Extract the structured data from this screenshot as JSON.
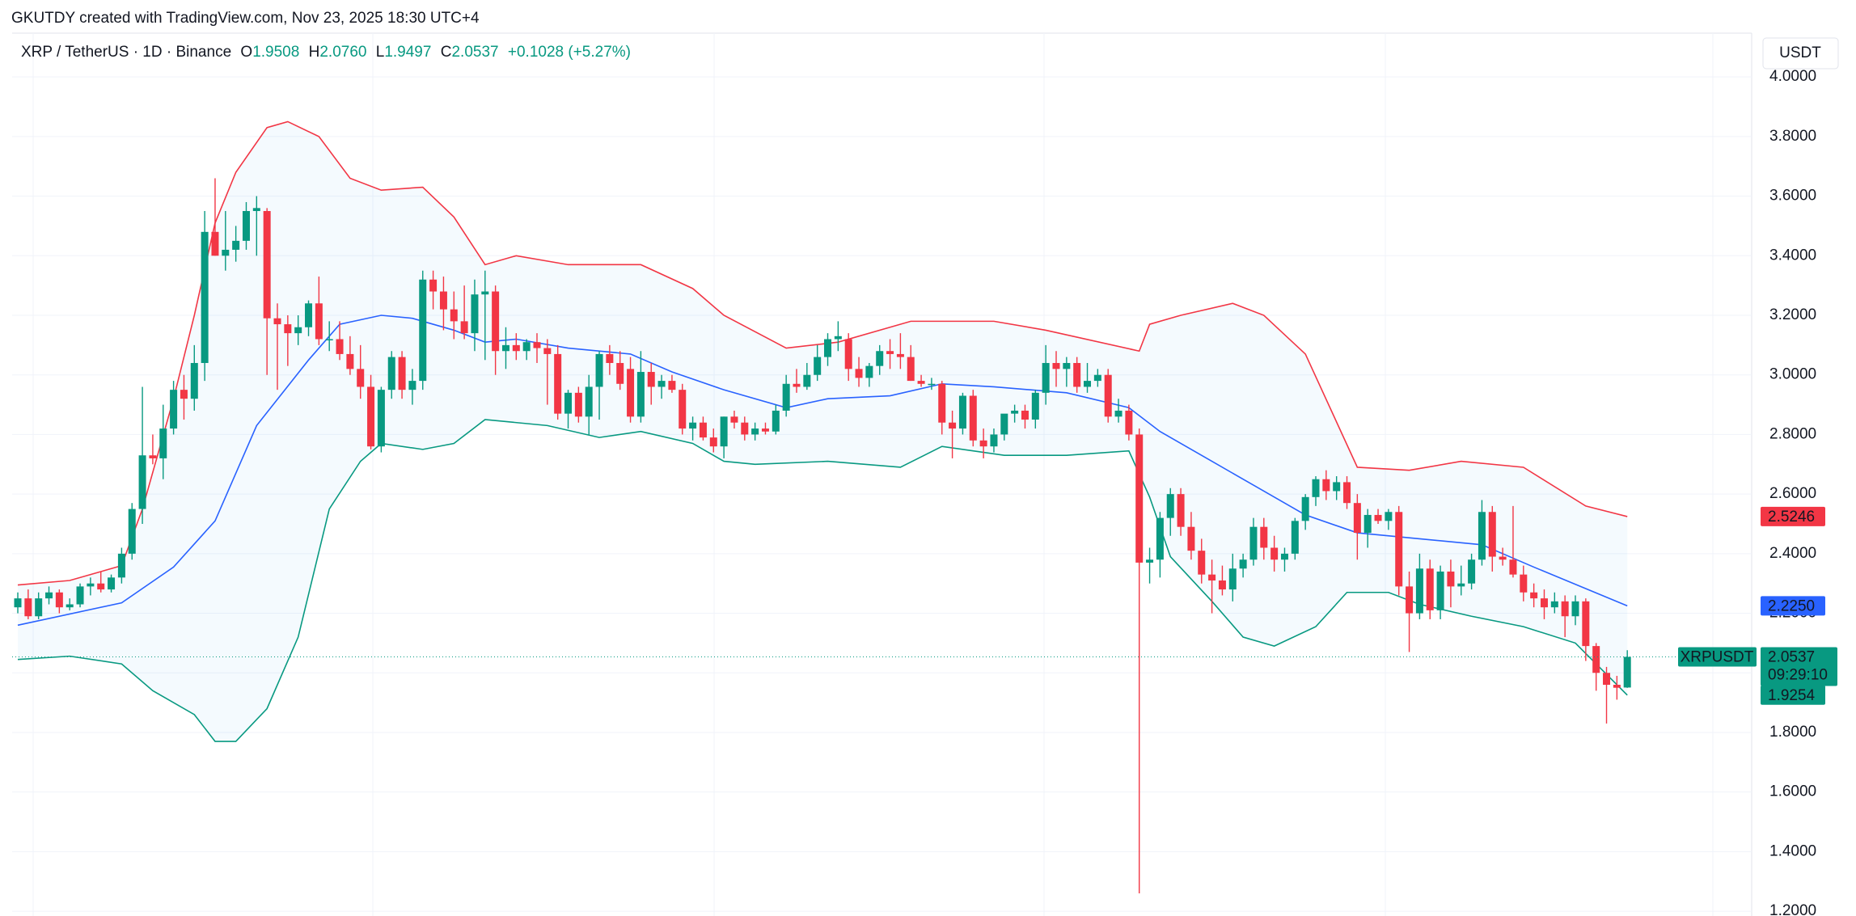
{
  "credit": "GKUTDY created with TradingView.com, Nov 23, 2025 18:30 UTC+4",
  "chart_data": {
    "type": "candlestick",
    "legend": {
      "symbol": "XRP / TetherUS · 1D · Binance",
      "open_label": "O",
      "open": "1.9508",
      "high_label": "H",
      "high": "2.0760",
      "low_label": "L",
      "low": "1.9497",
      "close_label": "C",
      "close": "2.0537",
      "change": "+0.1028 (+5.27%)"
    },
    "currency": "USDT",
    "up_color": "#089981",
    "down_color": "#f23645",
    "ylim": [
      1.184,
      4.147
    ],
    "yticks": [
      {
        "value": 1.2,
        "label": "1.2000"
      },
      {
        "value": 1.4,
        "label": "1.4000"
      },
      {
        "value": 1.6,
        "label": "1.6000"
      },
      {
        "value": 1.8,
        "label": "1.8000"
      },
      {
        "value": 2.0,
        "label": "2.0000"
      },
      {
        "value": 2.2,
        "label": "2.2000"
      },
      {
        "value": 2.4,
        "label": "2.4000"
      },
      {
        "value": 2.6,
        "label": "2.6000"
      },
      {
        "value": 2.8,
        "label": "2.8000"
      },
      {
        "value": 3.0,
        "label": "3.0000"
      },
      {
        "value": 3.2,
        "label": "3.2000"
      },
      {
        "value": 3.4,
        "label": "3.4000"
      },
      {
        "value": 3.6,
        "label": "3.6000"
      },
      {
        "value": 3.8,
        "label": "3.8000"
      },
      {
        "value": 4.0,
        "label": "4.0000"
      }
    ],
    "grid": true,
    "ohlc": [
      [
        2.22,
        2.27,
        2.2,
        2.25
      ],
      [
        2.25,
        2.28,
        2.18,
        2.19
      ],
      [
        2.19,
        2.27,
        2.18,
        2.25
      ],
      [
        2.25,
        2.29,
        2.23,
        2.27
      ],
      [
        2.27,
        2.28,
        2.2,
        2.22
      ],
      [
        2.22,
        2.25,
        2.21,
        2.23
      ],
      [
        2.23,
        2.3,
        2.22,
        2.29
      ],
      [
        2.29,
        2.32,
        2.26,
        2.3
      ],
      [
        2.3,
        2.34,
        2.27,
        2.28
      ],
      [
        2.28,
        2.33,
        2.27,
        2.32
      ],
      [
        2.32,
        2.42,
        2.3,
        2.4
      ],
      [
        2.4,
        2.57,
        2.38,
        2.55
      ],
      [
        2.55,
        2.96,
        2.5,
        2.73
      ],
      [
        2.73,
        2.8,
        2.7,
        2.72
      ],
      [
        2.72,
        2.9,
        2.65,
        2.82
      ],
      [
        2.82,
        2.98,
        2.8,
        2.95
      ],
      [
        2.95,
        3.0,
        2.85,
        2.92
      ],
      [
        2.92,
        3.1,
        2.88,
        3.04
      ],
      [
        3.04,
        3.55,
        2.98,
        3.48
      ],
      [
        3.48,
        3.66,
        3.4,
        3.4
      ],
      [
        3.4,
        3.55,
        3.35,
        3.42
      ],
      [
        3.42,
        3.5,
        3.38,
        3.45
      ],
      [
        3.45,
        3.58,
        3.42,
        3.55
      ],
      [
        3.55,
        3.6,
        3.4,
        3.56
      ],
      [
        3.55,
        3.56,
        3.0,
        3.19
      ],
      [
        3.19,
        3.24,
        2.95,
        3.17
      ],
      [
        3.17,
        3.2,
        3.03,
        3.14
      ],
      [
        3.14,
        3.2,
        3.1,
        3.16
      ],
      [
        3.16,
        3.25,
        3.13,
        3.24
      ],
      [
        3.24,
        3.33,
        3.1,
        3.12
      ],
      [
        3.12,
        3.18,
        3.08,
        3.12
      ],
      [
        3.12,
        3.18,
        3.05,
        3.07
      ],
      [
        3.07,
        3.13,
        3.0,
        3.02
      ],
      [
        3.02,
        3.1,
        2.92,
        2.96
      ],
      [
        2.96,
        3.0,
        2.75,
        2.76
      ],
      [
        2.76,
        2.96,
        2.74,
        2.95
      ],
      [
        2.95,
        3.08,
        2.92,
        3.06
      ],
      [
        3.06,
        3.08,
        2.92,
        2.95
      ],
      [
        2.95,
        3.02,
        2.9,
        2.98
      ],
      [
        2.98,
        3.35,
        2.95,
        3.32
      ],
      [
        3.32,
        3.35,
        3.22,
        3.28
      ],
      [
        3.28,
        3.33,
        3.15,
        3.22
      ],
      [
        3.22,
        3.28,
        3.12,
        3.18
      ],
      [
        3.18,
        3.3,
        3.12,
        3.14
      ],
      [
        3.14,
        3.32,
        3.08,
        3.27
      ],
      [
        3.27,
        3.35,
        3.05,
        3.28
      ],
      [
        3.28,
        3.3,
        3.0,
        3.08
      ],
      [
        3.08,
        3.16,
        3.02,
        3.1
      ],
      [
        3.1,
        3.14,
        3.05,
        3.08
      ],
      [
        3.08,
        3.12,
        3.05,
        3.11
      ],
      [
        3.11,
        3.14,
        3.04,
        3.09
      ],
      [
        3.09,
        3.12,
        2.9,
        3.07
      ],
      [
        3.07,
        3.1,
        2.85,
        2.87
      ],
      [
        2.87,
        2.95,
        2.82,
        2.94
      ],
      [
        2.94,
        2.96,
        2.84,
        2.86
      ],
      [
        2.86,
        3.0,
        2.8,
        2.96
      ],
      [
        2.96,
        3.08,
        2.85,
        3.07
      ],
      [
        3.07,
        3.1,
        3.0,
        3.04
      ],
      [
        3.04,
        3.08,
        2.95,
        2.97
      ],
      [
        3.02,
        3.06,
        2.84,
        2.86
      ],
      [
        2.86,
        3.08,
        2.84,
        3.01
      ],
      [
        3.01,
        3.04,
        2.9,
        2.96
      ],
      [
        2.96,
        3.0,
        2.92,
        2.98
      ],
      [
        2.98,
        3.0,
        2.94,
        2.95
      ],
      [
        2.95,
        2.97,
        2.8,
        2.82
      ],
      [
        2.82,
        2.86,
        2.78,
        2.84
      ],
      [
        2.84,
        2.86,
        2.78,
        2.79
      ],
      [
        2.79,
        2.82,
        2.74,
        2.76
      ],
      [
        2.76,
        2.86,
        2.72,
        2.86
      ],
      [
        2.86,
        2.88,
        2.82,
        2.84
      ],
      [
        2.84,
        2.86,
        2.78,
        2.8
      ],
      [
        2.8,
        2.84,
        2.78,
        2.82
      ],
      [
        2.82,
        2.84,
        2.8,
        2.81
      ],
      [
        2.81,
        2.9,
        2.8,
        2.88
      ],
      [
        2.88,
        3.0,
        2.86,
        2.97
      ],
      [
        2.97,
        3.02,
        2.94,
        2.96
      ],
      [
        2.96,
        3.04,
        2.95,
        3.0
      ],
      [
        3.0,
        3.1,
        2.98,
        3.06
      ],
      [
        3.06,
        3.14,
        3.03,
        3.12
      ],
      [
        3.12,
        3.18,
        3.08,
        3.13
      ],
      [
        3.12,
        3.14,
        2.98,
        3.02
      ],
      [
        3.02,
        3.06,
        2.96,
        2.99
      ],
      [
        2.99,
        3.04,
        2.96,
        3.03
      ],
      [
        3.03,
        3.1,
        3.0,
        3.08
      ],
      [
        3.08,
        3.12,
        3.02,
        3.07
      ],
      [
        3.07,
        3.14,
        3.02,
        3.06
      ],
      [
        3.06,
        3.1,
        2.98,
        2.98
      ],
      [
        2.98,
        3.0,
        2.96,
        2.97
      ],
      [
        2.97,
        2.99,
        2.95,
        2.97
      ],
      [
        2.97,
        2.98,
        2.8,
        2.84
      ],
      [
        2.84,
        2.88,
        2.72,
        2.82
      ],
      [
        2.82,
        2.94,
        2.8,
        2.93
      ],
      [
        2.93,
        2.95,
        2.76,
        2.78
      ],
      [
        2.78,
        2.82,
        2.72,
        2.76
      ],
      [
        2.76,
        2.82,
        2.74,
        2.8
      ],
      [
        2.8,
        2.86,
        2.78,
        2.87
      ],
      [
        2.87,
        2.9,
        2.84,
        2.88
      ],
      [
        2.88,
        2.9,
        2.82,
        2.85
      ],
      [
        2.85,
        2.95,
        2.82,
        2.94
      ],
      [
        2.94,
        3.1,
        2.9,
        3.04
      ],
      [
        3.04,
        3.08,
        2.96,
        3.02
      ],
      [
        3.02,
        3.06,
        2.96,
        3.04
      ],
      [
        3.04,
        3.06,
        2.94,
        2.96
      ],
      [
        2.96,
        3.04,
        2.94,
        2.98
      ],
      [
        2.98,
        3.02,
        2.96,
        3.0
      ],
      [
        3.0,
        3.02,
        2.84,
        2.86
      ],
      [
        2.86,
        2.92,
        2.84,
        2.88
      ],
      [
        2.88,
        2.9,
        2.78,
        2.8
      ],
      [
        2.8,
        2.82,
        1.26,
        2.37
      ],
      [
        2.37,
        2.42,
        2.3,
        2.38
      ],
      [
        2.38,
        2.54,
        2.32,
        2.52
      ],
      [
        2.52,
        2.62,
        2.46,
        2.6
      ],
      [
        2.6,
        2.62,
        2.46,
        2.49
      ],
      [
        2.49,
        2.54,
        2.38,
        2.41
      ],
      [
        2.41,
        2.45,
        2.3,
        2.33
      ],
      [
        2.33,
        2.38,
        2.2,
        2.31
      ],
      [
        2.31,
        2.36,
        2.26,
        2.28
      ],
      [
        2.28,
        2.4,
        2.24,
        2.35
      ],
      [
        2.35,
        2.4,
        2.32,
        2.38
      ],
      [
        2.38,
        2.52,
        2.36,
        2.49
      ],
      [
        2.49,
        2.52,
        2.38,
        2.42
      ],
      [
        2.42,
        2.46,
        2.34,
        2.38
      ],
      [
        2.38,
        2.42,
        2.34,
        2.4
      ],
      [
        2.4,
        2.52,
        2.38,
        2.51
      ],
      [
        2.51,
        2.6,
        2.48,
        2.59
      ],
      [
        2.59,
        2.66,
        2.56,
        2.65
      ],
      [
        2.65,
        2.68,
        2.58,
        2.61
      ],
      [
        2.61,
        2.66,
        2.58,
        2.64
      ],
      [
        2.64,
        2.66,
        2.55,
        2.57
      ],
      [
        2.57,
        2.6,
        2.38,
        2.47
      ],
      [
        2.47,
        2.55,
        2.42,
        2.53
      ],
      [
        2.53,
        2.55,
        2.5,
        2.51
      ],
      [
        2.51,
        2.55,
        2.48,
        2.54
      ],
      [
        2.54,
        2.56,
        2.26,
        2.29
      ],
      [
        2.29,
        2.34,
        2.07,
        2.2
      ],
      [
        2.2,
        2.4,
        2.18,
        2.35
      ],
      [
        2.35,
        2.38,
        2.18,
        2.21
      ],
      [
        2.21,
        2.36,
        2.18,
        2.34
      ],
      [
        2.34,
        2.38,
        2.22,
        2.29
      ],
      [
        2.29,
        2.36,
        2.26,
        2.3
      ],
      [
        2.3,
        2.4,
        2.28,
        2.38
      ],
      [
        2.38,
        2.58,
        2.36,
        2.54
      ],
      [
        2.54,
        2.56,
        2.34,
        2.39
      ],
      [
        2.39,
        2.42,
        2.36,
        2.38
      ],
      [
        2.38,
        2.56,
        2.32,
        2.33
      ],
      [
        2.33,
        2.36,
        2.24,
        2.27
      ],
      [
        2.27,
        2.3,
        2.22,
        2.25
      ],
      [
        2.25,
        2.28,
        2.18,
        2.22
      ],
      [
        2.22,
        2.27,
        2.2,
        2.24
      ],
      [
        2.24,
        2.26,
        2.12,
        2.19
      ],
      [
        2.19,
        2.26,
        2.16,
        2.24
      ],
      [
        2.24,
        2.25,
        2.04,
        2.09
      ],
      [
        2.09,
        2.1,
        1.94,
        2.0
      ],
      [
        2.0,
        2.02,
        1.83,
        1.96
      ],
      [
        1.96,
        1.99,
        1.91,
        1.95
      ],
      [
        1.9508,
        2.076,
        1.9497,
        2.0537
      ]
    ],
    "bands": [
      {
        "color": "#f23645",
        "last_label": "2.5246",
        "x": [
          0,
          5,
          10,
          12,
          15,
          17,
          19,
          21,
          24,
          26,
          29,
          32,
          35,
          39,
          42,
          45,
          48,
          53,
          60,
          65,
          68,
          74,
          79,
          86,
          94,
          99,
          108,
          109,
          112,
          117,
          120,
          124,
          129,
          134,
          139,
          145,
          151,
          155
        ],
        "values": [
          2.295,
          2.31,
          2.36,
          2.55,
          2.92,
          3.2,
          3.51,
          3.68,
          3.83,
          3.85,
          3.8,
          3.66,
          3.62,
          3.63,
          3.53,
          3.37,
          3.4,
          3.37,
          3.37,
          3.29,
          3.2,
          3.09,
          3.11,
          3.18,
          3.18,
          3.15,
          3.08,
          3.17,
          3.2,
          3.24,
          3.2,
          3.07,
          2.69,
          2.68,
          2.71,
          2.69,
          2.56,
          2.5246
        ]
      },
      {
        "color": "#2962ff",
        "last_label": "2.2250",
        "x": [
          0,
          10,
          15,
          19,
          23,
          28,
          31,
          35,
          38,
          42,
          45,
          48,
          53,
          59,
          63,
          68,
          74,
          78,
          84,
          89,
          94,
          101,
          107,
          110,
          115,
          119,
          124,
          129,
          135,
          141,
          146,
          155
        ],
        "values": [
          2.16,
          2.235,
          2.355,
          2.51,
          2.83,
          3.05,
          3.17,
          3.2,
          3.19,
          3.15,
          3.11,
          3.12,
          3.09,
          3.07,
          3.01,
          2.95,
          2.89,
          2.92,
          2.93,
          2.97,
          2.96,
          2.94,
          2.89,
          2.81,
          2.71,
          2.63,
          2.53,
          2.47,
          2.45,
          2.43,
          2.355,
          2.225
        ]
      },
      {
        "color": "#089981",
        "last_label": "1.9254",
        "x": [
          0,
          5,
          10,
          13,
          17,
          19,
          21,
          24,
          27,
          30,
          33,
          35,
          39,
          42,
          45,
          51,
          56,
          60,
          65,
          68,
          71,
          78,
          85,
          89,
          95,
          101,
          107,
          109,
          111,
          115,
          118,
          121,
          125,
          128,
          132,
          135,
          140,
          145,
          150,
          155
        ],
        "values": [
          2.045,
          2.056,
          2.03,
          1.94,
          1.86,
          1.77,
          1.77,
          1.88,
          2.12,
          2.55,
          2.71,
          2.77,
          2.75,
          2.77,
          2.85,
          2.83,
          2.79,
          2.81,
          2.77,
          2.71,
          2.7,
          2.71,
          2.69,
          2.76,
          2.73,
          2.73,
          2.745,
          2.59,
          2.39,
          2.24,
          2.12,
          2.09,
          2.155,
          2.27,
          2.27,
          2.23,
          2.19,
          2.155,
          2.1,
          1.9254
        ]
      }
    ],
    "last_price": {
      "name": "XRPUSDT",
      "value": 2.0537,
      "countdown": "09:29:10",
      "color": "#089981"
    }
  }
}
